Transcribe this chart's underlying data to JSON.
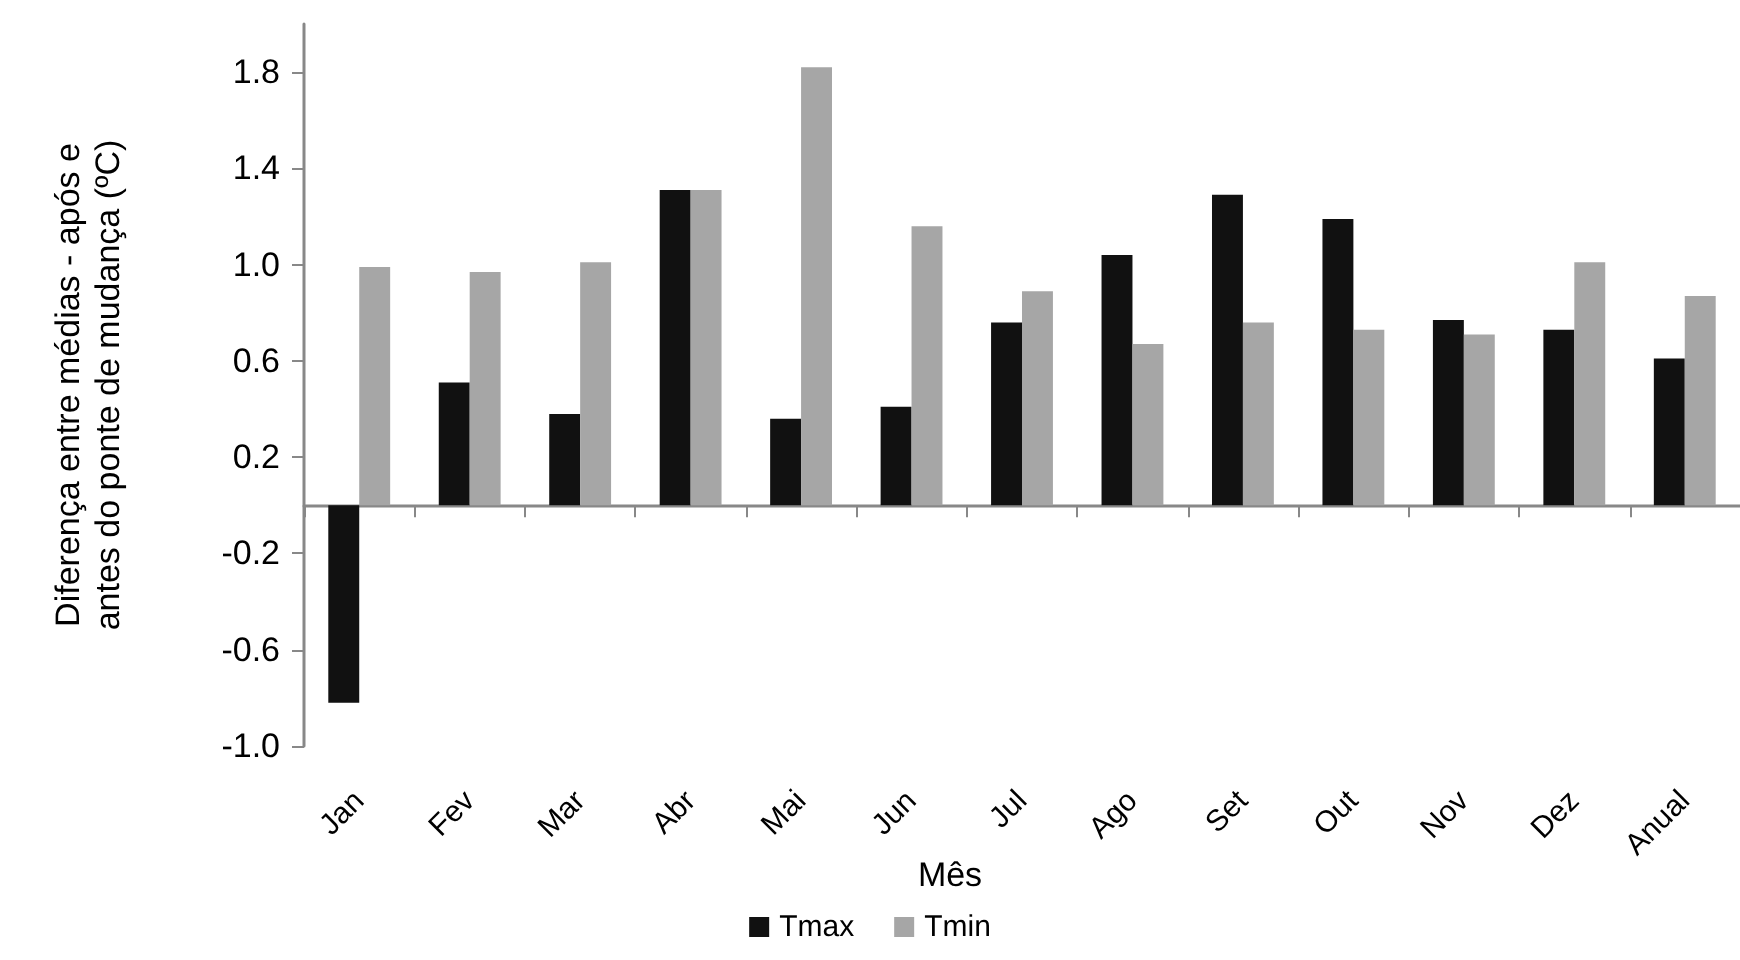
{
  "chart_data": {
    "type": "bar",
    "xlabel": "Mês",
    "ylabel": "Diferença entre médias - após e\nantes do ponte de mudança (ºC)",
    "categories": [
      "Jan",
      "Fev",
      "Mar",
      "Abr",
      "Mai",
      "Jun",
      "Jul",
      "Ago",
      "Set",
      "Out",
      "Nov",
      "Dez",
      "Anual"
    ],
    "series": [
      {
        "name": "Tmax",
        "color": "#111111",
        "values": [
          -0.82,
          0.51,
          0.38,
          1.31,
          0.36,
          0.41,
          0.76,
          1.04,
          1.29,
          1.19,
          0.77,
          0.73,
          0.61
        ]
      },
      {
        "name": "Tmin",
        "color": "#a6a6a6",
        "values": [
          0.99,
          0.97,
          1.01,
          1.31,
          1.82,
          1.16,
          0.89,
          0.67,
          0.76,
          0.73,
          0.71,
          1.01,
          0.87
        ]
      }
    ],
    "ylim": [
      -1.0,
      2.0
    ],
    "yticks": [
      {
        "value": -1.0,
        "label": "-1.0"
      },
      {
        "value": -0.6,
        "label": "-0.6"
      },
      {
        "value": -0.2,
        "label": "-0.2"
      },
      {
        "value": 0.2,
        "label": "0.2"
      },
      {
        "value": 0.6,
        "label": "0.6"
      },
      {
        "value": 1.0,
        "label": "1.0"
      },
      {
        "value": 1.4,
        "label": "1.4"
      },
      {
        "value": 1.8,
        "label": "1.8"
      }
    ],
    "grid": false,
    "legend": "bottom"
  }
}
